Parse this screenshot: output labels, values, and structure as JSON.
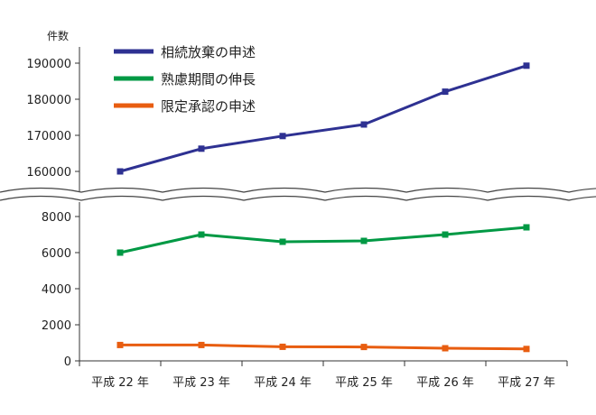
{
  "chart_data": {
    "type": "line",
    "ylabel": "件数",
    "categories": [
      "平成 22 年",
      "平成 23 年",
      "平成 24 年",
      "平成 25 年",
      "平成 26 年",
      "平成 27 年"
    ],
    "axis_break": true,
    "upper_ylim": [
      155000,
      190000
    ],
    "upper_ticks": [
      160000,
      170000,
      180000,
      190000
    ],
    "lower_ylim": [
      0,
      8000
    ],
    "lower_ticks": [
      0,
      2000,
      4000,
      6000,
      8000
    ],
    "legend_position": "top-left",
    "series": [
      {
        "name": "相続放棄の申述",
        "color": "#2e3192",
        "segment": "upper",
        "values": [
          160000,
          166300,
          169800,
          173000,
          182100,
          189300
        ]
      },
      {
        "name": "熟慮期間の伸長",
        "color": "#009944",
        "segment": "lower",
        "values": [
          6000,
          7000,
          6600,
          6650,
          7000,
          7400
        ]
      },
      {
        "name": "限定承認の申述",
        "color": "#e85d10",
        "segment": "lower",
        "values": [
          880,
          880,
          780,
          770,
          700,
          660
        ]
      }
    ]
  }
}
